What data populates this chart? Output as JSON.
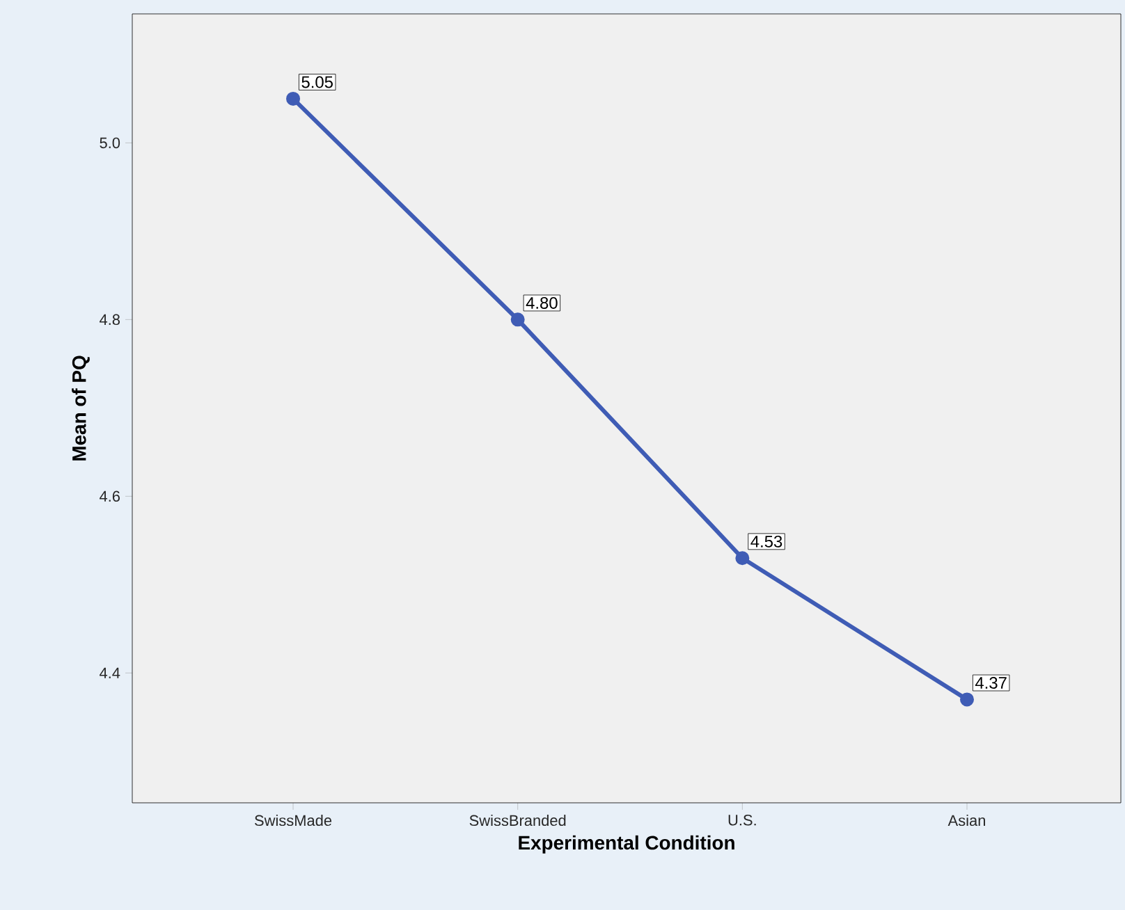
{
  "chart_data": {
    "type": "line",
    "xlabel": "Experimental Condition",
    "ylabel": "Mean of PQ",
    "categories": [
      "SwissMade",
      "SwissBranded",
      "U.S.",
      "Asian"
    ],
    "values": [
      5.05,
      4.8,
      4.53,
      4.37
    ],
    "value_labels": [
      "5.05",
      "4.80",
      "4.53",
      "4.37"
    ],
    "color": "#3f5cb5",
    "marker": "circle",
    "line_style": "solid",
    "grid": false,
    "ylim": [
      4.253,
      5.146
    ],
    "yticks": [
      {
        "value": 4.4,
        "label": "4.4"
      },
      {
        "value": 4.6,
        "label": "4.6"
      },
      {
        "value": 4.8,
        "label": "4.8"
      },
      {
        "value": 5.0,
        "label": "5.0"
      }
    ]
  }
}
